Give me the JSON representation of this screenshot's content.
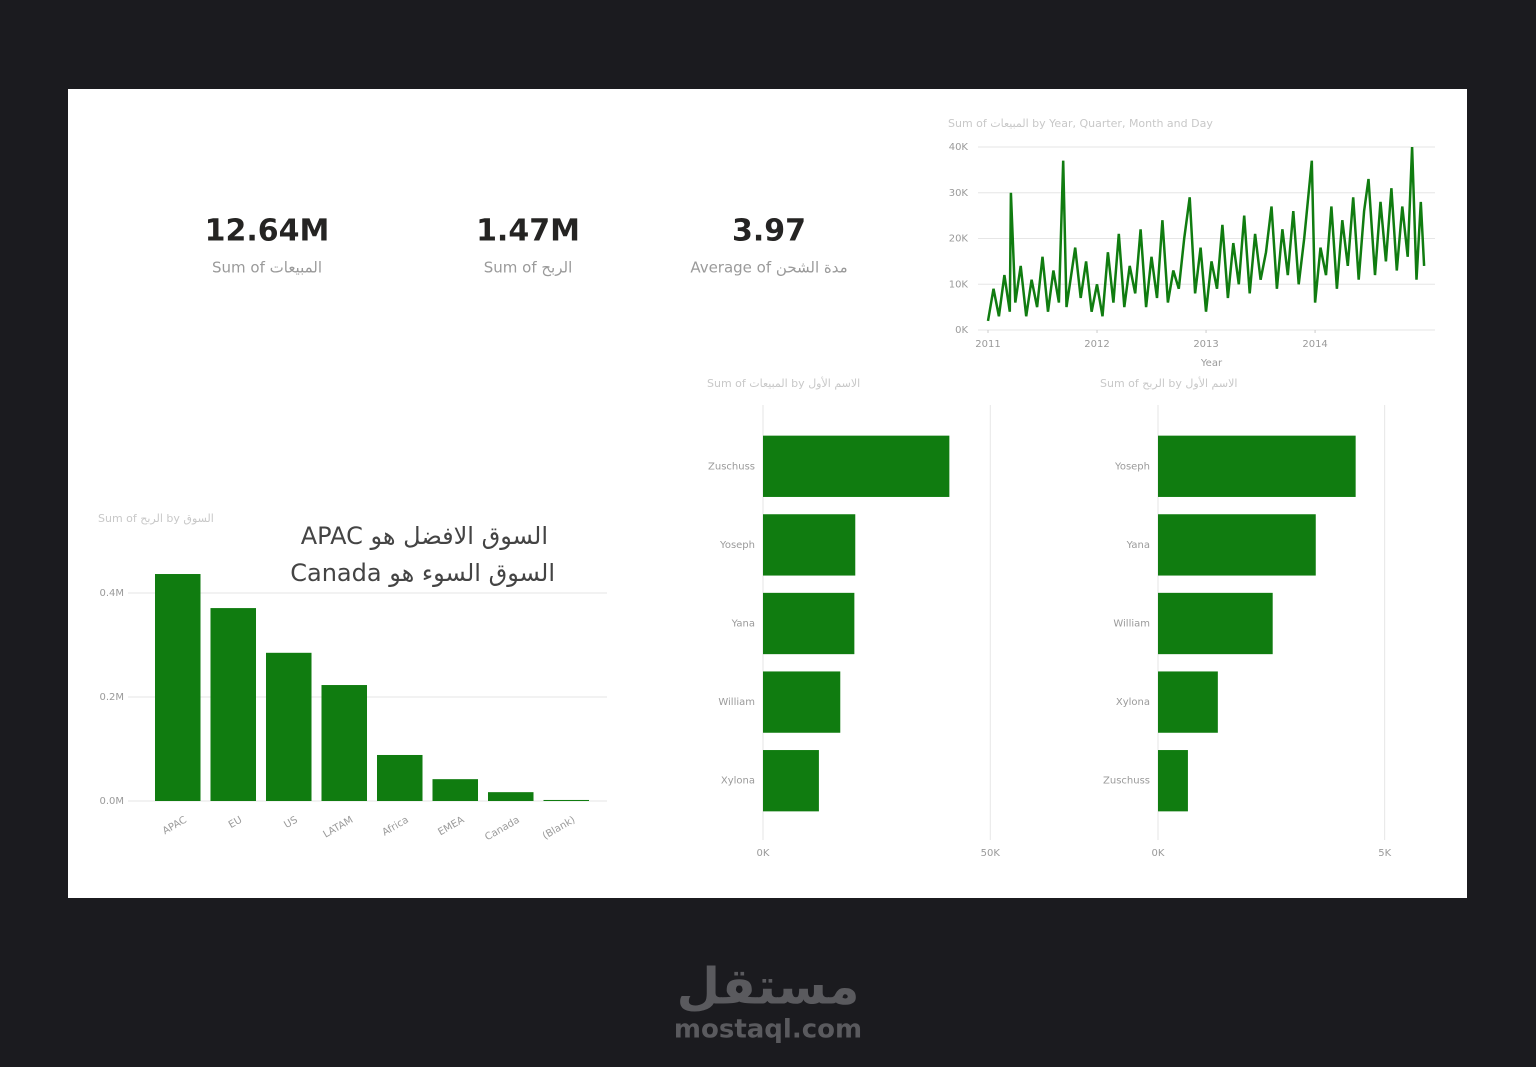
{
  "cards": [
    {
      "value": "12.64M",
      "label": "Sum of المبيعات"
    },
    {
      "value": "1.47M",
      "label": "Sum of الربح"
    },
    {
      "value": "3.97",
      "label": "Average of مدة الشحن"
    }
  ],
  "annotation": [
    "السوق الافضل هو APAC",
    "السوق السوء هو Canada"
  ],
  "watermark": {
    "logo": "مستقل",
    "site": "mostaql.com"
  },
  "chart_data": [
    {
      "type": "line",
      "title": "Sum of المبيعات by Year, Quarter, Month and Day",
      "x_label": "Year",
      "color": "#107c10",
      "grid": true,
      "x": [
        2011.0,
        2011.05,
        2011.1,
        2011.15,
        2011.2,
        2011.21,
        2011.25,
        2011.3,
        2011.35,
        2011.4,
        2011.45,
        2011.5,
        2011.55,
        2011.6,
        2011.65,
        2011.69,
        2011.72,
        2011.8,
        2011.85,
        2011.9,
        2011.95,
        2012.0,
        2012.05,
        2012.1,
        2012.15,
        2012.2,
        2012.25,
        2012.3,
        2012.35,
        2012.4,
        2012.45,
        2012.5,
        2012.55,
        2012.6,
        2012.65,
        2012.7,
        2012.75,
        2012.8,
        2012.85,
        2012.9,
        2012.95,
        2013.0,
        2013.05,
        2013.1,
        2013.15,
        2013.2,
        2013.25,
        2013.3,
        2013.35,
        2013.4,
        2013.45,
        2013.5,
        2013.55,
        2013.6,
        2013.65,
        2013.7,
        2013.75,
        2013.8,
        2013.85,
        2013.9,
        2013.97,
        2014.0,
        2014.05,
        2014.1,
        2014.15,
        2014.2,
        2014.25,
        2014.3,
        2014.35,
        2014.4,
        2014.45,
        2014.49,
        2014.55,
        2014.6,
        2014.65,
        2014.7,
        2014.75,
        2014.8,
        2014.85,
        2014.89,
        2014.93,
        2014.97,
        2015.0
      ],
      "values": [
        2000,
        9000,
        3000,
        12000,
        4000,
        30000,
        6000,
        14000,
        3000,
        11000,
        5000,
        16000,
        4000,
        13000,
        6000,
        37000,
        5000,
        18000,
        7000,
        15000,
        4000,
        10000,
        3000,
        17000,
        6000,
        21000,
        5000,
        14000,
        8000,
        22000,
        5000,
        16000,
        7000,
        24000,
        6000,
        13000,
        9000,
        20000,
        29000,
        8000,
        18000,
        4000,
        15000,
        9000,
        23000,
        7000,
        19000,
        10000,
        25000,
        8000,
        21000,
        11000,
        17000,
        27000,
        9000,
        22000,
        12000,
        26000,
        10000,
        20000,
        37000,
        6000,
        18000,
        12000,
        27000,
        9000,
        24000,
        14000,
        29000,
        11000,
        26000,
        33000,
        12000,
        28000,
        15000,
        31000,
        13000,
        27000,
        16000,
        40000,
        11000,
        28000,
        14000
      ],
      "xlim": [
        2011,
        2015.1
      ],
      "xticks": [
        2011,
        2012,
        2013,
        2014
      ],
      "ylim": [
        0,
        40000
      ],
      "yticks": [
        {
          "value": 0,
          "label": "0K"
        },
        {
          "value": 10000,
          "label": "10K"
        },
        {
          "value": 20000,
          "label": "20K"
        },
        {
          "value": 30000,
          "label": "30K"
        },
        {
          "value": 40000,
          "label": "40K"
        }
      ]
    },
    {
      "type": "bar",
      "title": "Sum of الربح by السوق",
      "color": "#107c10",
      "grid": true,
      "categories": [
        "APAC",
        "EU",
        "US",
        "LATAM",
        "Africa",
        "EMEA",
        "Canada",
        "(Blank)"
      ],
      "values": [
        436500,
        371000,
        285000,
        223000,
        88500,
        42000,
        17000,
        2000
      ],
      "ylim": [
        0,
        450000
      ],
      "yticks": [
        {
          "value": 0,
          "label": "0.0M"
        },
        {
          "value": 200000,
          "label": "0.2M"
        },
        {
          "value": 400000,
          "label": "0.4M"
        }
      ]
    },
    {
      "type": "barh",
      "title": "Sum of المبيعات by الاسم الأول",
      "color": "#107c10",
      "grid": true,
      "categories": [
        "Zuschuss",
        "Yoseph",
        "Yana",
        "William",
        "Xylona"
      ],
      "values": [
        41000,
        20300,
        20100,
        17000,
        12300
      ],
      "xlim": [
        0,
        55000
      ],
      "xticks": [
        {
          "value": 0,
          "label": "0K"
        },
        {
          "value": 50000,
          "label": "50K"
        }
      ]
    },
    {
      "type": "barh",
      "title": "Sum of الربح by الاسم الأول",
      "color": "#107c10",
      "grid": true,
      "categories": [
        "Yoseph",
        "Yana",
        "William",
        "Xylona",
        "Zuschuss"
      ],
      "values": [
        4360,
        3480,
        2530,
        1320,
        660
      ],
      "xlim": [
        0,
        6000
      ],
      "xticks": [
        {
          "value": 0,
          "label": "0K"
        },
        {
          "value": 5000,
          "label": "5K"
        }
      ]
    }
  ]
}
